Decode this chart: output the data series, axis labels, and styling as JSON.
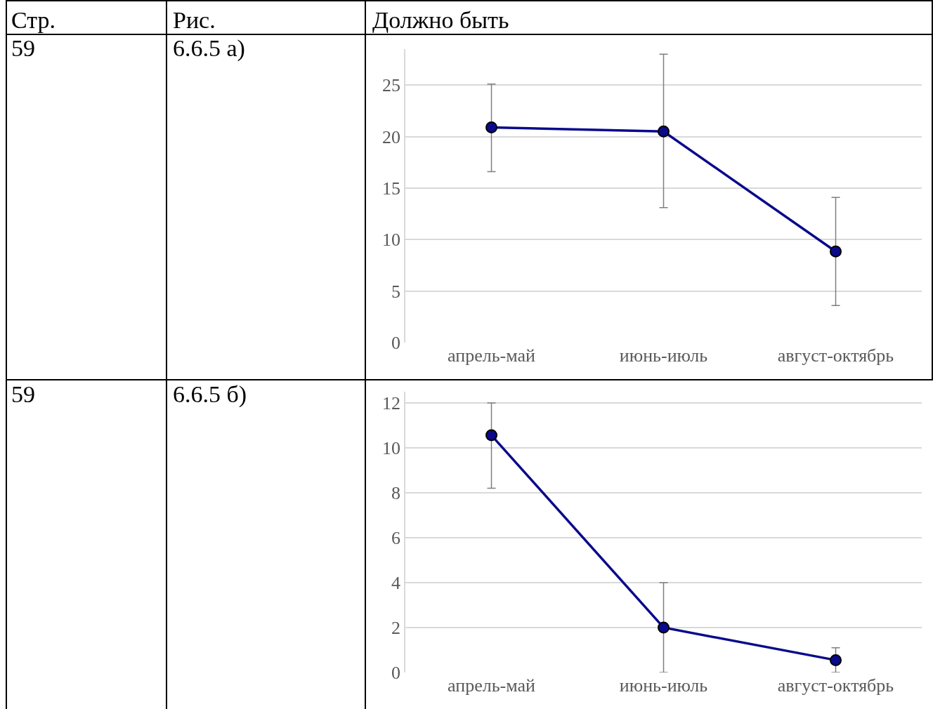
{
  "chart_data": [
    {
      "type": "line",
      "categories": [
        "апрель-май",
        "июнь-июль",
        "август-октябрь"
      ],
      "series": [
        {
          "color": "#0a0a8c",
          "values": [
            20.9,
            20.5,
            8.85
          ],
          "errors": [
            [
              16.6,
              25.1
            ],
            [
              13.1,
              28.0
            ],
            [
              3.6,
              14.1
            ]
          ]
        }
      ],
      "ylim": [
        0,
        28.5
      ],
      "yticks": [
        0,
        5,
        10,
        15,
        20,
        25
      ],
      "grid": "y",
      "marker": "circle",
      "annotations": [
        "Стр.",
        "Рис.",
        "Должно быть",
        "59",
        "6.6.5 а)"
      ]
    },
    {
      "type": "line",
      "categories": [
        "апрель-май",
        "июнь-июль",
        "август-октябрь"
      ],
      "series": [
        {
          "color": "#0a0a8c",
          "values": [
            10.56,
            2.0,
            0.55
          ],
          "errors": [
            [
              8.2,
              12.0
            ],
            [
              0,
              4.0
            ],
            [
              0,
              1.1
            ]
          ]
        }
      ],
      "ylim": [
        0,
        12.5
      ],
      "yticks": [
        0,
        2,
        4,
        6,
        8,
        10,
        12
      ],
      "grid": "y",
      "marker": "circle",
      "annotations": [
        "59",
        "6.6.5 б)"
      ]
    }
  ]
}
